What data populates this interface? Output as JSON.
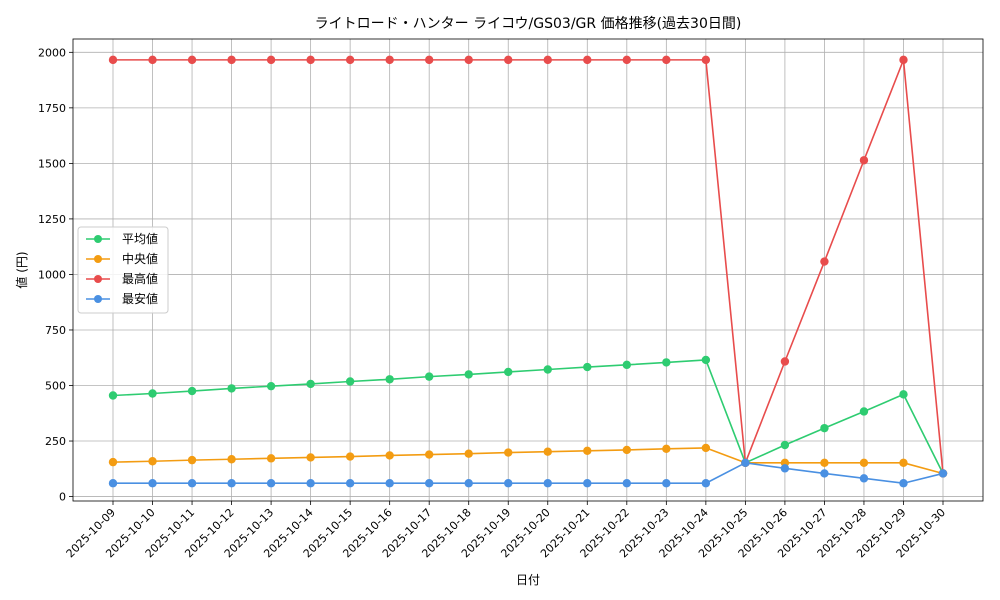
{
  "chart_data": {
    "type": "line",
    "title": "ライトロード・ハンター ライコウ/GS03/GR 価格推移(過去30日間)",
    "xlabel": "日付",
    "ylabel": "値 (円)",
    "ylim": [
      -20,
      2060
    ],
    "yticks": [
      0,
      250,
      500,
      750,
      1000,
      1250,
      1500,
      1750,
      2000
    ],
    "grid": true,
    "legend_position": "center-left",
    "categories": [
      "2025-10-09",
      "2025-10-10",
      "2025-10-11",
      "2025-10-12",
      "2025-10-13",
      "2025-10-14",
      "2025-10-15",
      "2025-10-16",
      "2025-10-17",
      "2025-10-18",
      "2025-10-19",
      "2025-10-20",
      "2025-10-21",
      "2025-10-22",
      "2025-10-23",
      "2025-10-24",
      "2025-10-25",
      "2025-10-26",
      "2025-10-27",
      "2025-10-28",
      "2025-10-29",
      "2025-10-30"
    ],
    "series": [
      {
        "name": "平均値",
        "color": "#2ecc71",
        "values": [
          455,
          464,
          475,
          487,
          497,
          507,
          518,
          528,
          540,
          550,
          561,
          572,
          583,
          593,
          604,
          615,
          152,
          232,
          308,
          383,
          460,
          104
        ]
      },
      {
        "name": "中央値",
        "color": "#f39c12",
        "values": [
          155,
          159,
          164,
          168,
          172,
          176,
          180,
          185,
          189,
          193,
          198,
          202,
          206,
          210,
          215,
          219,
          152,
          152,
          152,
          152,
          152,
          104
        ]
      },
      {
        "name": "最高値",
        "color": "#e84c4c",
        "values": [
          1966,
          1966,
          1966,
          1966,
          1966,
          1966,
          1966,
          1966,
          1966,
          1966,
          1966,
          1966,
          1966,
          1966,
          1966,
          1966,
          152,
          608,
          1058,
          1514,
          1966,
          104
        ]
      },
      {
        "name": "最安値",
        "color": "#4a90e2",
        "values": [
          60,
          60,
          60,
          60,
          60,
          60,
          60,
          60,
          60,
          60,
          60,
          60,
          60,
          60,
          60,
          60,
          152,
          127,
          104,
          82,
          60,
          104
        ]
      }
    ]
  }
}
